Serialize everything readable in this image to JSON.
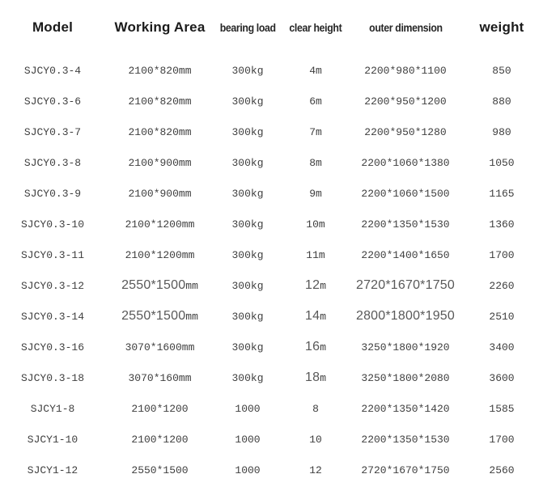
{
  "colors": {
    "background": "#ffffff",
    "header_primary_text": "#1b1b1b",
    "header_secondary_text": "#262626",
    "cell_text": "#3f3f3f",
    "cell_emphasis_text": "#595959"
  },
  "table": {
    "columns": [
      {
        "key": "model",
        "label": "Model",
        "header_style": "primary"
      },
      {
        "key": "working_area",
        "label": "Working Area",
        "header_style": "primary"
      },
      {
        "key": "bearing_load",
        "label": "bearing load",
        "header_style": "secondary"
      },
      {
        "key": "clear_height",
        "label": "clear height",
        "header_style": "secondary"
      },
      {
        "key": "outer_dimension",
        "label": "outer dimension",
        "header_style": "secondary"
      },
      {
        "key": "weight",
        "label": "weight",
        "header_style": "primary"
      }
    ],
    "rows": [
      {
        "model": "SJCY0.3-4",
        "working_area": {
          "value": "2100*820",
          "unit": "mm"
        },
        "bearing_load": {
          "value": "300",
          "unit": "kg"
        },
        "clear_height": {
          "value": "4",
          "unit": "m"
        },
        "outer_dimension": "2200*980*1100",
        "weight": "850",
        "emphasis": []
      },
      {
        "model": "SJCY0.3-6",
        "working_area": {
          "value": "2100*820",
          "unit": "mm"
        },
        "bearing_load": {
          "value": "300",
          "unit": "kg"
        },
        "clear_height": {
          "value": "6",
          "unit": "m"
        },
        "outer_dimension": "2200*950*1200",
        "weight": "880",
        "emphasis": []
      },
      {
        "model": "SJCY0.3-7",
        "working_area": {
          "value": "2100*820",
          "unit": "mm"
        },
        "bearing_load": {
          "value": "300",
          "unit": "kg"
        },
        "clear_height": {
          "value": "7",
          "unit": "m"
        },
        "outer_dimension": "2200*950*1280",
        "weight": "980",
        "emphasis": []
      },
      {
        "model": "SJCY0.3-8",
        "working_area": {
          "value": "2100*900",
          "unit": "mm"
        },
        "bearing_load": {
          "value": "300",
          "unit": "kg"
        },
        "clear_height": {
          "value": "8",
          "unit": "m"
        },
        "outer_dimension": "2200*1060*1380",
        "weight": "1050",
        "emphasis": []
      },
      {
        "model": "SJCY0.3-9",
        "working_area": {
          "value": "2100*900",
          "unit": "mm"
        },
        "bearing_load": {
          "value": "300",
          "unit": "kg"
        },
        "clear_height": {
          "value": "9",
          "unit": "m"
        },
        "outer_dimension": "2200*1060*1500",
        "weight": "1165",
        "emphasis": []
      },
      {
        "model": "SJCY0.3-10",
        "working_area": {
          "value": "2100*1200",
          "unit": "mm"
        },
        "bearing_load": {
          "value": "300",
          "unit": "kg"
        },
        "clear_height": {
          "value": "10",
          "unit": "m"
        },
        "outer_dimension": "2200*1350*1530",
        "weight": "1360",
        "emphasis": []
      },
      {
        "model": "SJCY0.3-11",
        "working_area": {
          "value": "2100*1200",
          "unit": "mm"
        },
        "bearing_load": {
          "value": "300",
          "unit": "kg"
        },
        "clear_height": {
          "value": "11",
          "unit": "m"
        },
        "outer_dimension": "2200*1400*1650",
        "weight": "1700",
        "emphasis": []
      },
      {
        "model": "SJCY0.3-12",
        "working_area": {
          "value": "2550*1500",
          "unit": "mm"
        },
        "bearing_load": {
          "value": "300",
          "unit": "kg"
        },
        "clear_height": {
          "value": "12",
          "unit": "m"
        },
        "outer_dimension": "2720*1670*1750",
        "weight": "2260",
        "emphasis": [
          "working_area",
          "clear_height",
          "outer_dimension"
        ]
      },
      {
        "model": "SJCY0.3-14",
        "working_area": {
          "value": "2550*1500",
          "unit": "mm"
        },
        "bearing_load": {
          "value": "300",
          "unit": "kg"
        },
        "clear_height": {
          "value": "14",
          "unit": "m"
        },
        "outer_dimension": "2800*1800*1950",
        "weight": "2510",
        "emphasis": [
          "working_area",
          "clear_height",
          "outer_dimension"
        ]
      },
      {
        "model": "SJCY0.3-16",
        "working_area": {
          "value": "3070*1600",
          "unit": "mm"
        },
        "bearing_load": {
          "value": "300",
          "unit": "kg"
        },
        "clear_height": {
          "value": "16",
          "unit": "m"
        },
        "outer_dimension": "3250*1800*1920",
        "weight": "3400",
        "emphasis": [
          "clear_height"
        ]
      },
      {
        "model": "SJCY0.3-18",
        "working_area": {
          "value": "3070*160",
          "unit": "mm"
        },
        "bearing_load": {
          "value": "300",
          "unit": "kg"
        },
        "clear_height": {
          "value": "18",
          "unit": "m"
        },
        "outer_dimension": "3250*1800*2080",
        "weight": "3600",
        "emphasis": [
          "clear_height"
        ]
      },
      {
        "model": "SJCY1-8",
        "working_area": {
          "value": "2100*1200",
          "unit": ""
        },
        "bearing_load": {
          "value": "1000",
          "unit": ""
        },
        "clear_height": {
          "value": "8",
          "unit": ""
        },
        "outer_dimension": "2200*1350*1420",
        "weight": "1585",
        "emphasis": []
      },
      {
        "model": "SJCY1-10",
        "working_area": {
          "value": "2100*1200",
          "unit": ""
        },
        "bearing_load": {
          "value": "1000",
          "unit": ""
        },
        "clear_height": {
          "value": "10",
          "unit": ""
        },
        "outer_dimension": "2200*1350*1530",
        "weight": "1700",
        "emphasis": []
      },
      {
        "model": "SJCY1-12",
        "working_area": {
          "value": "2550*1500",
          "unit": ""
        },
        "bearing_load": {
          "value": "1000",
          "unit": ""
        },
        "clear_height": {
          "value": "12",
          "unit": ""
        },
        "outer_dimension": "2720*1670*1750",
        "weight": "2560",
        "emphasis": []
      }
    ]
  }
}
